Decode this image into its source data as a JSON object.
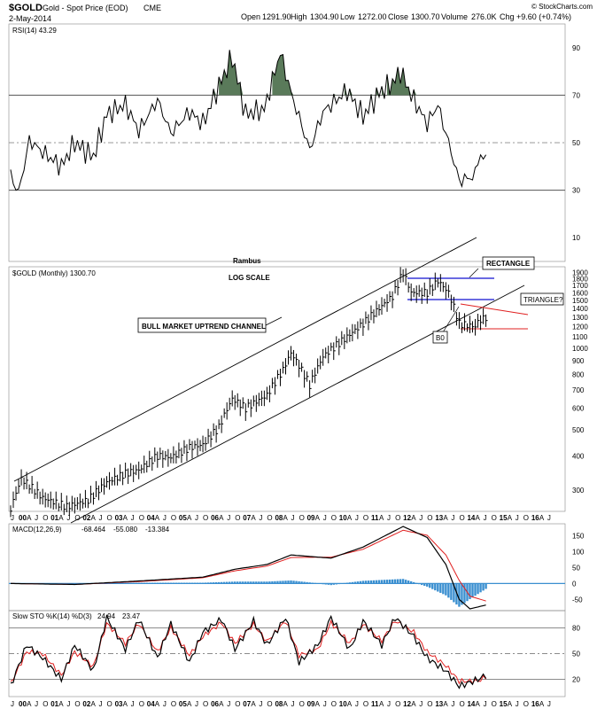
{
  "header": {
    "symbol": "$GOLD",
    "description": "Gold - Spot Price (EOD)",
    "exchange": "CME",
    "date": "2-May-2014",
    "open_label": "Open",
    "open": "1291.90",
    "high_label": "High",
    "high": "1304.90",
    "low_label": "Low",
    "low": "1272.00",
    "close_label": "Close",
    "close": "1300.70",
    "volume_label": "Volume",
    "volume": "276.0K",
    "chg_label": "Chg",
    "chg": "+9.60 (+0.74%)",
    "watermark": "© StockCharts.com"
  },
  "colors": {
    "price": "#000000",
    "rsi_fill": "#5a7a5a",
    "macd_signal": "#e02020",
    "macd_hist": "#3a8fd0",
    "rectangle": "#1010d0",
    "triangle": "#e02020",
    "grid": "#999999"
  },
  "chart_data": [
    {
      "type": "line",
      "panel": "RSI",
      "legend": "RSI(14) 43.29",
      "x": [
        "1999-06",
        "1999-09",
        "2000-01",
        "2000-06",
        "2001-01",
        "2001-06",
        "2002-01",
        "2002-06",
        "2003-01",
        "2003-06",
        "2004-01",
        "2004-06",
        "2005-01",
        "2005-06",
        "2005-12",
        "2006-05",
        "2006-10",
        "2007-05",
        "2007-11",
        "2008-03",
        "2008-10",
        "2009-03",
        "2009-12",
        "2010-06",
        "2010-12",
        "2011-05",
        "2011-08",
        "2011-12",
        "2012-06",
        "2012-10",
        "2013-02",
        "2013-06",
        "2013-12",
        "2014-01",
        "2014-04"
      ],
      "values": [
        36,
        29,
        51,
        46,
        40,
        50,
        44,
        62,
        66,
        55,
        68,
        54,
        63,
        58,
        74,
        86,
        62,
        64,
        88,
        71,
        47,
        63,
        72,
        61,
        71,
        75,
        80,
        70,
        58,
        66,
        50,
        34,
        36,
        44,
        43
      ],
      "ylim": [
        0,
        100
      ],
      "reference_lines": [
        70,
        50,
        30
      ],
      "yticks": [
        10,
        30,
        50,
        70,
        90
      ]
    },
    {
      "type": "line",
      "panel": "Price",
      "scale": "log",
      "legend": "$GOLD (Monthly) 1300.70",
      "title": "Rambus",
      "annotations": [
        "LOG SCALE",
        "BULL MARKET UPTREND CHANNEL",
        "RECTANGLE",
        "TRIANGLE?",
        "B0"
      ],
      "x": [
        "1999-06",
        "1999-10",
        "2000-06",
        "2001-03",
        "2001-11",
        "2002-06",
        "2003-01",
        "2003-06",
        "2004-01",
        "2004-06",
        "2005-01",
        "2005-06",
        "2005-12",
        "2006-05",
        "2006-10",
        "2007-06",
        "2007-12",
        "2008-03",
        "2008-10",
        "2009-03",
        "2009-12",
        "2010-06",
        "2010-12",
        "2011-05",
        "2011-09",
        "2011-12",
        "2012-06",
        "2012-10",
        "2013-02",
        "2013-06",
        "2013-12",
        "2014-01",
        "2014-04"
      ],
      "values": [
        255,
        330,
        280,
        260,
        275,
        320,
        345,
        355,
        400,
        395,
        430,
        440,
        510,
        650,
        600,
        670,
        830,
        960,
        730,
        930,
        1100,
        1230,
        1400,
        1550,
        1900,
        1600,
        1600,
        1770,
        1600,
        1230,
        1200,
        1250,
        1300
      ],
      "yticks": [
        300,
        400,
        500,
        600,
        700,
        800,
        900,
        1000,
        1100,
        1200,
        1300,
        1400,
        1500,
        1600,
        1700,
        1800,
        1900
      ],
      "ylim": [
        250,
        1950
      ],
      "xtick_labels": [
        "J",
        "00",
        "A",
        "J",
        "O",
        "01",
        "A",
        "J",
        "O",
        "02",
        "A",
        "J",
        "O",
        "03",
        "A",
        "J",
        "O",
        "04",
        "A",
        "J",
        "O",
        "05",
        "A",
        "J",
        "O",
        "06",
        "A",
        "J",
        "O",
        "07",
        "A",
        "J",
        "O",
        "08",
        "A",
        "J",
        "O",
        "09",
        "A",
        "J",
        "O",
        "10",
        "A",
        "J",
        "O",
        "11",
        "A",
        "J",
        "O",
        "12",
        "A",
        "J",
        "O",
        "13",
        "A",
        "J",
        "O",
        "14",
        "A",
        "J",
        "O",
        "15",
        "A",
        "J",
        "O",
        "16",
        "A",
        "J"
      ]
    },
    {
      "type": "line",
      "panel": "MACD",
      "legend_name": "MACD(12,26,9)",
      "legend_macd": "-68.464",
      "legend_signal": "-55.080",
      "legend_hist": "-13.384",
      "series": [
        {
          "name": "MACD",
          "x": [
            "1999-06",
            "2001-06",
            "2003-06",
            "2005-06",
            "2006-06",
            "2007-06",
            "2008-03",
            "2009-06",
            "2010-06",
            "2011-09",
            "2012-06",
            "2013-01",
            "2013-06",
            "2013-10",
            "2014-04"
          ],
          "values": [
            0,
            -3,
            8,
            20,
            45,
            60,
            90,
            80,
            115,
            180,
            145,
            60,
            -50,
            -80,
            -68
          ]
        },
        {
          "name": "Signal",
          "x": [
            "1999-06",
            "2001-06",
            "2003-06",
            "2005-06",
            "2006-06",
            "2007-06",
            "2008-03",
            "2009-06",
            "2010-06",
            "2011-09",
            "2012-06",
            "2013-01",
            "2013-06",
            "2013-10",
            "2014-04"
          ],
          "values": [
            0,
            -3,
            6,
            18,
            40,
            55,
            82,
            83,
            108,
            168,
            152,
            90,
            10,
            -40,
            -55
          ]
        }
      ],
      "ylim": [
        -80,
        180
      ],
      "yticks": [
        -50,
        0,
        50,
        100,
        150
      ]
    },
    {
      "type": "line",
      "panel": "Slow STO",
      "legend_name": "Slow STO %K(14) %D(3)",
      "legend_k": "24.94",
      "legend_d": "23.47",
      "series": [
        {
          "name": "%K",
          "x": [
            "1999-06",
            "1999-12",
            "2000-06",
            "2001-01",
            "2001-06",
            "2002-01",
            "2002-06",
            "2003-01",
            "2003-06",
            "2004-01",
            "2004-06",
            "2005-01",
            "2005-06",
            "2006-01",
            "2006-06",
            "2007-01",
            "2007-06",
            "2008-01",
            "2008-06",
            "2009-01",
            "2009-06",
            "2010-01",
            "2010-06",
            "2011-01",
            "2011-06",
            "2012-01",
            "2012-06",
            "2013-01",
            "2013-06",
            "2014-01",
            "2014-04"
          ],
          "values": [
            12,
            60,
            45,
            20,
            60,
            30,
            92,
            55,
            90,
            45,
            85,
            40,
            75,
            90,
            55,
            88,
            60,
            92,
            40,
            60,
            92,
            55,
            88,
            60,
            92,
            70,
            45,
            30,
            12,
            20,
            25
          ]
        },
        {
          "name": "%D",
          "x": [
            "1999-06",
            "1999-12",
            "2000-06",
            "2001-01",
            "2001-06",
            "2002-01",
            "2002-06",
            "2003-01",
            "2003-06",
            "2004-01",
            "2004-06",
            "2005-01",
            "2005-06",
            "2006-01",
            "2006-06",
            "2007-01",
            "2007-06",
            "2008-01",
            "2008-06",
            "2009-01",
            "2009-06",
            "2010-01",
            "2010-06",
            "2011-01",
            "2011-06",
            "2012-01",
            "2012-06",
            "2013-01",
            "2013-06",
            "2014-01",
            "2014-04"
          ],
          "values": [
            15,
            52,
            50,
            25,
            52,
            35,
            85,
            62,
            85,
            52,
            80,
            48,
            70,
            86,
            62,
            84,
            64,
            88,
            48,
            55,
            86,
            62,
            84,
            65,
            88,
            75,
            52,
            36,
            18,
            18,
            23
          ]
        }
      ],
      "ylim": [
        0,
        100
      ],
      "yticks": [
        20,
        50,
        80
      ]
    }
  ]
}
